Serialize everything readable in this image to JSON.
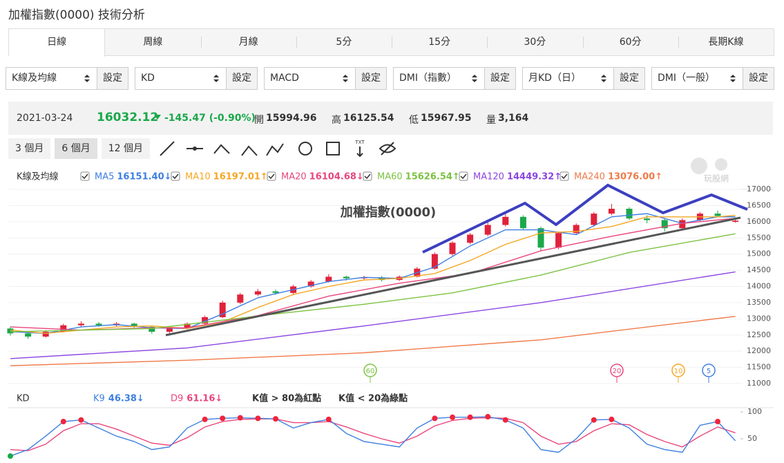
{
  "header": {
    "title": "加權指數(0000) 技術分析"
  },
  "tabs": [
    "日線",
    "周線",
    "月線",
    "5分",
    "15分",
    "30分",
    "60分",
    "長期K線"
  ],
  "selects": [
    {
      "label": "K線及均線",
      "button": "設定"
    },
    {
      "label": "KD",
      "button": "設定"
    },
    {
      "label": "MACD",
      "button": "設定"
    },
    {
      "label": "DMI（指數）",
      "button": "設定"
    },
    {
      "label": "月KD（日）",
      "button": "設定"
    },
    {
      "label": "DMI（一般）",
      "button": "設定"
    }
  ],
  "quote": {
    "date": "2021-03-24",
    "price": "16032.12",
    "change": "-145.47 (-0.90%)",
    "open_label": "開",
    "open": "15994.96",
    "high_label": "高",
    "high": "16125.54",
    "low_label": "低",
    "low": "15967.95",
    "volume_label": "量",
    "volume": "3,164"
  },
  "periods": [
    "3 個月",
    "6 個月",
    "12 個月"
  ],
  "tool_text": "TXT",
  "watermark": "玩股網",
  "chart_data": [
    {
      "type": "candlestick",
      "title": "加權指數(0000)",
      "legend_label": "K線及均線",
      "up_color": "#e0223a",
      "down_color": "#1aa84a",
      "open": [
        12700,
        12550,
        12450,
        12600,
        12800,
        12850,
        12800,
        12850,
        12750,
        12600,
        12700,
        12850,
        13050,
        13500,
        13750,
        13850,
        13800,
        14000,
        14150,
        14300,
        14250,
        14280,
        14200,
        14300,
        14550,
        15000,
        15350,
        15600,
        15900,
        16150,
        15800,
        15200,
        15650,
        15900,
        16250,
        16400,
        16100,
        16050,
        15800,
        16050,
        16250,
        15994.96
      ],
      "high": [
        12760,
        12620,
        12650,
        12850,
        12920,
        12900,
        12900,
        12880,
        12770,
        12740,
        12890,
        13100,
        13560,
        13800,
        13920,
        13900,
        14050,
        14200,
        14380,
        14330,
        14330,
        14320,
        14340,
        14600,
        15050,
        15400,
        15650,
        16000,
        16250,
        16200,
        15850,
        15700,
        15950,
        16300,
        16550,
        16450,
        16200,
        16100,
        16100,
        16300,
        16350,
        16125.54
      ],
      "low": [
        12480,
        12380,
        12420,
        12580,
        12760,
        12750,
        12770,
        12700,
        12540,
        12560,
        12680,
        12830,
        13020,
        13450,
        13700,
        13740,
        13760,
        13960,
        14120,
        14180,
        14200,
        14150,
        14170,
        14280,
        14520,
        14950,
        15300,
        15550,
        15850,
        15750,
        15100,
        15150,
        15600,
        15850,
        16200,
        16050,
        15950,
        15700,
        15750,
        16000,
        16150,
        15967.95
      ],
      "close": [
        12550,
        12450,
        12600,
        12800,
        12850,
        12800,
        12850,
        12750,
        12600,
        12700,
        12850,
        13050,
        13500,
        13750,
        13850,
        13800,
        14000,
        14150,
        14300,
        14250,
        14280,
        14200,
        14300,
        14550,
        15000,
        15350,
        15600,
        15900,
        16150,
        15800,
        15200,
        15650,
        15900,
        16250,
        16400,
        16100,
        16050,
        15800,
        16050,
        16250,
        16177,
        16032.12
      ],
      "ylim": [
        11000,
        17000
      ],
      "yticks": [
        11000,
        11500,
        12000,
        12500,
        13000,
        13500,
        14000,
        14500,
        15000,
        15500,
        16000,
        16500,
        17000
      ],
      "grid": true,
      "series": [
        {
          "name": "MA5",
          "value_label": "16151.40↓",
          "color": "#3d7fe0",
          "x": [
            0,
            2,
            4,
            6,
            8,
            10,
            12,
            14,
            16,
            18,
            20,
            22,
            24,
            26,
            28,
            30,
            32,
            34,
            36,
            38,
            40,
            41
          ],
          "values": [
            12600,
            12550,
            12750,
            12820,
            12720,
            12700,
            13150,
            13650,
            13900,
            14150,
            14280,
            14250,
            14600,
            15250,
            15750,
            15750,
            15600,
            16150,
            16250,
            15950,
            16150,
            16151.4
          ]
        },
        {
          "name": "MA10",
          "value_label": "16197.01↑",
          "color": "#f5a623",
          "x": [
            0,
            2,
            4,
            6,
            8,
            10,
            12,
            14,
            16,
            18,
            20,
            22,
            24,
            26,
            28,
            30,
            32,
            34,
            36,
            38,
            40,
            41
          ],
          "values": [
            12650,
            12550,
            12650,
            12750,
            12780,
            12700,
            12900,
            13350,
            13750,
            14000,
            14200,
            14250,
            14400,
            14800,
            15300,
            15650,
            15700,
            15850,
            16150,
            16150,
            16150,
            16197.01
          ]
        },
        {
          "name": "MA20",
          "value_label": "16104.68↓",
          "color": "#e8467c",
          "x": [
            0,
            4,
            8,
            10,
            14,
            18,
            22,
            26,
            30,
            34,
            38,
            41
          ],
          "values": [
            12750,
            12650,
            12720,
            12720,
            13100,
            13700,
            14100,
            14400,
            15100,
            15550,
            15950,
            16104.68
          ]
        },
        {
          "name": "MA60",
          "value_label": "15626.54↑",
          "color": "#7cc242",
          "x": [
            0,
            8,
            15,
            20,
            25,
            30,
            35,
            41
          ],
          "values": [
            12600,
            12700,
            13150,
            13450,
            13800,
            14350,
            15050,
            15626.54
          ]
        },
        {
          "name": "MA120",
          "value_label": "14449.32↑",
          "color": "#8b46e0",
          "x": [
            0,
            10,
            20,
            30,
            41
          ],
          "values": [
            11770,
            12100,
            12780,
            13500,
            14449.32
          ]
        },
        {
          "name": "MA240",
          "value_label": "13076.00↑",
          "color": "#f07a4a",
          "x": [
            0,
            10,
            20,
            30,
            41
          ],
          "values": [
            11550,
            11720,
            11950,
            12350,
            13076.0
          ]
        }
      ],
      "markers": [
        {
          "label": "60",
          "color": "#7cc242"
        },
        {
          "label": "20",
          "color": "#e8467c"
        },
        {
          "label": "10",
          "color": "#f5a623"
        },
        {
          "label": "5",
          "color": "#3d7fe0"
        }
      ]
    },
    {
      "type": "line",
      "legend_label": "KD",
      "series": [
        {
          "name": "K9",
          "value_label": "46.38↓",
          "color": "#3d7fe0",
          "values": [
            18,
            30,
            55,
            82,
            85,
            70,
            55,
            45,
            30,
            35,
            70,
            86,
            88,
            89,
            88,
            87,
            70,
            80,
            86,
            60,
            45,
            40,
            35,
            70,
            88,
            90,
            90,
            91,
            85,
            70,
            30,
            25,
            50,
            85,
            86,
            70,
            40,
            30,
            25,
            75,
            82,
            46.38
          ]
        },
        {
          "name": "D9",
          "value_label": "61.16↓",
          "color": "#e8467c",
          "values": [
            30,
            28,
            40,
            65,
            78,
            78,
            68,
            55,
            42,
            38,
            52,
            72,
            82,
            86,
            87,
            87,
            80,
            80,
            82,
            72,
            60,
            50,
            42,
            55,
            74,
            84,
            88,
            89,
            88,
            80,
            55,
            40,
            45,
            65,
            78,
            76,
            58,
            45,
            35,
            55,
            72,
            61.16
          ]
        }
      ],
      "notes": [
        "K值 > 80為紅點",
        "K值 < 20為綠點"
      ],
      "red_above": 80,
      "green_below": 20,
      "dot_colors": {
        "high": "#f0243c",
        "low": "#1aa84a"
      },
      "ylim": [
        0,
        100
      ],
      "yticks": [
        50,
        100
      ]
    }
  ]
}
